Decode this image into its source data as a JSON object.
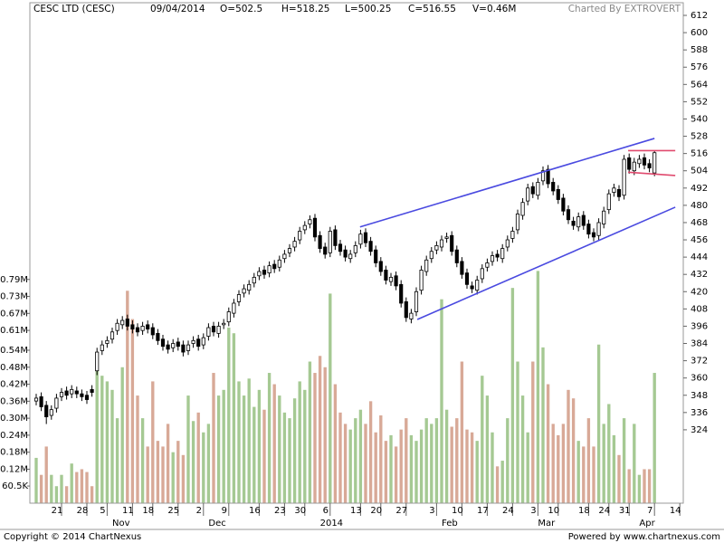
{
  "chart_data": {
    "type": "candlestick",
    "title": "CESC LTD (CESC)",
    "date": "09/04/2014",
    "quote": [
      "O=502.5",
      "H=518.25",
      "L=500.25",
      "C=516.55",
      "V=0.46M"
    ],
    "credit": "Charted By EXTROVERT",
    "open": [
      344,
      347,
      341,
      334,
      339,
      347,
      351,
      349,
      351,
      349,
      348,
      352,
      365,
      379,
      384,
      387,
      393,
      397,
      401,
      397,
      395,
      393,
      397,
      395,
      391,
      387,
      383,
      381,
      385,
      383,
      379,
      384,
      387,
      383,
      389,
      396,
      391,
      397,
      399,
      405,
      413,
      419,
      421,
      426,
      431,
      435,
      433,
      439,
      437,
      443,
      447,
      451,
      456,
      463,
      467,
      471,
      459,
      451,
      447,
      463,
      453,
      449,
      443,
      447,
      453,
      461,
      455,
      449,
      441,
      435,
      427,
      431,
      425,
      413,
      401,
      406,
      421,
      434,
      443,
      449,
      451,
      457,
      459,
      449,
      441,
      433,
      424,
      421,
      429,
      437,
      441,
      446,
      443,
      451,
      457,
      463,
      473,
      483,
      493,
      487,
      497,
      505,
      496,
      491,
      485,
      477,
      469,
      465,
      473,
      467,
      461,
      459,
      467,
      477,
      489,
      491,
      487,
      513,
      504,
      509,
      513,
      509,
      502.5
    ],
    "high": [
      349,
      350,
      344,
      341,
      349,
      353,
      354,
      355,
      354,
      352,
      351,
      355,
      381,
      386,
      389,
      395,
      401,
      403,
      404,
      400,
      398,
      399,
      400,
      398,
      394,
      390,
      386,
      387,
      388,
      386,
      386,
      389,
      390,
      391,
      398,
      399,
      399,
      401,
      409,
      415,
      421,
      425,
      428,
      433,
      437,
      438,
      441,
      442,
      445,
      449,
      453,
      458,
      465,
      469,
      473,
      474,
      462,
      454,
      465,
      466,
      456,
      452,
      449,
      455,
      463,
      464,
      458,
      452,
      444,
      438,
      433,
      434,
      428,
      416,
      408,
      423,
      438,
      445,
      451,
      455,
      459,
      461,
      462,
      452,
      444,
      436,
      427,
      431,
      439,
      443,
      448,
      449,
      453,
      459,
      465,
      477,
      485,
      495,
      496,
      499,
      507,
      508,
      499,
      494,
      488,
      480,
      472,
      475,
      476,
      470,
      464,
      471,
      479,
      491,
      495,
      494,
      515,
      516,
      513,
      515,
      516,
      512,
      518.25
    ],
    "low": [
      341,
      337,
      328,
      331,
      336,
      344,
      345,
      346,
      346,
      344,
      342,
      347,
      362,
      376,
      381,
      384,
      390,
      394,
      393,
      391,
      389,
      390,
      391,
      387,
      383,
      379,
      377,
      378,
      379,
      375,
      376,
      381,
      379,
      380,
      386,
      389,
      388,
      394,
      396,
      402,
      410,
      416,
      418,
      423,
      428,
      429,
      430,
      433,
      434,
      440,
      444,
      448,
      453,
      460,
      464,
      455,
      447,
      443,
      444,
      449,
      445,
      441,
      440,
      444,
      450,
      451,
      445,
      437,
      431,
      425,
      424,
      421,
      409,
      399,
      398,
      403,
      418,
      431,
      440,
      446,
      448,
      454,
      445,
      437,
      429,
      422,
      419,
      418,
      426,
      434,
      438,
      441,
      440,
      448,
      454,
      460,
      470,
      480,
      485,
      484,
      494,
      492,
      487,
      481,
      473,
      467,
      463,
      462,
      463,
      457,
      455,
      456,
      464,
      474,
      486,
      483,
      484,
      502,
      501,
      506,
      505,
      503,
      500.25
    ],
    "close": [
      346,
      340,
      333,
      338,
      346,
      350,
      348,
      352,
      349,
      347,
      345,
      350,
      378,
      383,
      386,
      392,
      398,
      400,
      396,
      394,
      392,
      396,
      394,
      390,
      386,
      382,
      380,
      384,
      382,
      378,
      383,
      386,
      382,
      388,
      395,
      392,
      396,
      398,
      406,
      412,
      418,
      422,
      425,
      430,
      434,
      432,
      438,
      436,
      442,
      446,
      450,
      455,
      462,
      466,
      470,
      458,
      450,
      446,
      462,
      452,
      448,
      444,
      446,
      452,
      460,
      454,
      448,
      440,
      434,
      428,
      430,
      424,
      412,
      402,
      405,
      420,
      435,
      442,
      448,
      452,
      456,
      458,
      448,
      440,
      432,
      425,
      422,
      428,
      436,
      440,
      445,
      444,
      450,
      456,
      462,
      474,
      482,
      492,
      488,
      496,
      504,
      495,
      490,
      484,
      476,
      470,
      466,
      472,
      466,
      460,
      458,
      468,
      476,
      488,
      492,
      486,
      512,
      505,
      510,
      512,
      508,
      506,
      516.55
    ],
    "candle_color": "#000000",
    "ylim": [
      273,
      620.8
    ],
    "yticks": [
      324,
      336,
      348,
      360,
      372,
      384,
      396,
      408,
      420,
      432,
      444,
      456,
      468,
      480,
      492,
      504,
      516,
      528,
      540,
      552,
      564,
      576,
      588,
      600,
      612
    ],
    "volume": {
      "values": [
        0.16,
        0.1,
        0.2,
        0.1,
        0.06,
        0.1,
        0.06,
        0.14,
        0.11,
        0.12,
        0.11,
        0.06,
        0.48,
        0.45,
        0.43,
        0.4,
        0.3,
        0.48,
        0.75,
        0.65,
        0.38,
        0.3,
        0.2,
        0.43,
        0.22,
        0.2,
        0.28,
        0.18,
        0.22,
        0.17,
        0.38,
        0.29,
        0.32,
        0.25,
        0.28,
        0.46,
        0.38,
        0.4,
        0.62,
        0.6,
        0.43,
        0.38,
        0.44,
        0.34,
        0.4,
        0.33,
        0.46,
        0.42,
        0.38,
        0.32,
        0.3,
        0.37,
        0.43,
        0.4,
        0.5,
        0.46,
        0.52,
        0.48,
        0.74,
        0.42,
        0.32,
        0.28,
        0.26,
        0.3,
        0.33,
        0.28,
        0.36,
        0.25,
        0.31,
        0.22,
        0.24,
        0.2,
        0.26,
        0.3,
        0.24,
        0.22,
        0.26,
        0.3,
        0.28,
        0.3,
        0.72,
        0.33,
        0.27,
        0.3,
        0.5,
        0.26,
        0.25,
        0.22,
        0.45,
        0.38,
        0.25,
        0.13,
        0.15,
        0.3,
        0.76,
        0.5,
        0.38,
        0.25,
        0.5,
        0.82,
        0.55,
        0.42,
        0.28,
        0.24,
        0.28,
        0.4,
        0.37,
        0.22,
        0.2,
        0.3,
        0.2,
        0.56,
        0.28,
        0.35,
        0.24,
        0.17,
        0.3,
        0.12,
        0.28,
        0.1,
        0.12,
        0.12,
        0.46
      ],
      "up_color": "#a5c993",
      "down_color": "#d8a997",
      "ylim": [
        0,
        1.767
      ],
      "yticks": [
        {
          "value": 0.0605,
          "label": "60.5K"
        },
        {
          "value": 0.12,
          "label": "0.12M"
        },
        {
          "value": 0.18,
          "label": "0.18M"
        },
        {
          "value": 0.24,
          "label": "0.24M"
        },
        {
          "value": 0.3,
          "label": "0.30M"
        },
        {
          "value": 0.36,
          "label": "0.36M"
        },
        {
          "value": 0.42,
          "label": "0.42M"
        },
        {
          "value": 0.48,
          "label": "0.48M"
        },
        {
          "value": 0.54,
          "label": "0.54M"
        },
        {
          "value": 0.61,
          "label": "0.61M"
        },
        {
          "value": 0.67,
          "label": "0.67M"
        },
        {
          "value": 0.73,
          "label": "0.73M"
        },
        {
          "value": 0.79,
          "label": "0.79M"
        }
      ]
    },
    "xlim": [
      -1.25,
      127.68
    ],
    "xticks": [
      {
        "value": 5,
        "label": "21"
      },
      {
        "value": 10,
        "label": "28"
      },
      {
        "value": 14,
        "label": "5"
      },
      {
        "value": 19,
        "label": "11"
      },
      {
        "value": 23,
        "label": "18"
      },
      {
        "value": 28,
        "label": "25"
      },
      {
        "value": 33,
        "label": "2"
      },
      {
        "value": 38,
        "label": "9"
      },
      {
        "value": 44,
        "label": "16"
      },
      {
        "value": 49,
        "label": "23"
      },
      {
        "value": 53,
        "label": "30"
      },
      {
        "value": 58,
        "label": "6"
      },
      {
        "value": 64,
        "label": "13"
      },
      {
        "value": 68,
        "label": "20"
      },
      {
        "value": 73,
        "label": "27"
      },
      {
        "value": 79,
        "label": "3"
      },
      {
        "value": 84,
        "label": "10"
      },
      {
        "value": 89,
        "label": "17"
      },
      {
        "value": 94,
        "label": "24"
      },
      {
        "value": 99,
        "label": "3"
      },
      {
        "value": 103,
        "label": "10"
      },
      {
        "value": 109,
        "label": "18"
      },
      {
        "value": 113,
        "label": "24"
      },
      {
        "value": 117,
        "label": "31"
      },
      {
        "value": 122,
        "label": "7"
      },
      {
        "value": 127,
        "label": "14"
      }
    ],
    "month_ticks": [
      {
        "value": 15,
        "label": "Nov"
      },
      {
        "value": 34,
        "label": "Dec"
      },
      {
        "value": 56,
        "label": "2014"
      },
      {
        "value": 80,
        "label": "Feb"
      },
      {
        "value": 99,
        "label": "Mar"
      },
      {
        "value": 119,
        "label": "Apr"
      }
    ],
    "trendlines": [
      {
        "color": "#4a4ae0",
        "points": [
          [
            63.9,
            465
          ],
          [
            122,
            526.5
          ]
        ]
      },
      {
        "color": "#4a4ae0",
        "points": [
          [
            75.2,
            400.7
          ],
          [
            126.1,
            478.7
          ]
        ]
      },
      {
        "color": "#e04a6e",
        "points": [
          [
            116.8,
            518
          ],
          [
            126.1,
            518
          ]
        ]
      },
      {
        "color": "#e04a6e",
        "points": [
          [
            116.8,
            503
          ],
          [
            126.1,
            500.7
          ]
        ]
      }
    ]
  },
  "footer": {
    "left": "Copyright © 2014 ChartNexus",
    "right": "Powered by www.chartnexus.com"
  }
}
